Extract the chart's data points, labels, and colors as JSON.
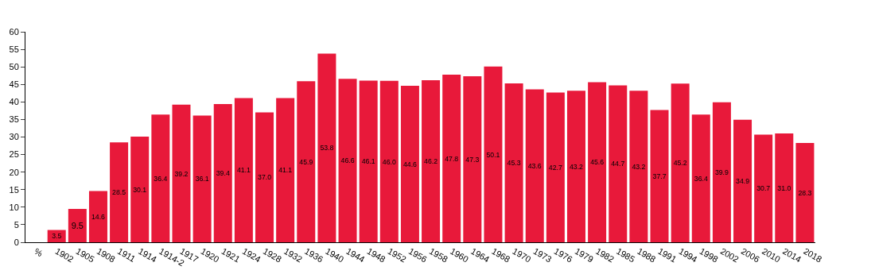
{
  "chart_data": {
    "type": "bar",
    "categories": [
      "%",
      "1902",
      "1905",
      "1908",
      "1911",
      "1914",
      "1914-2",
      "1917",
      "1920",
      "1921",
      "1924",
      "1928",
      "1932",
      "1936",
      "1940",
      "1944",
      "1948",
      "1952",
      "1956",
      "1958",
      "1960",
      "1964",
      "1968",
      "1970",
      "1973",
      "1976",
      "1979",
      "1982",
      "1985",
      "1988",
      "1991",
      "1994",
      "1998",
      "2002",
      "2006",
      "2010",
      "2014",
      "2018"
    ],
    "values": [
      null,
      3.5,
      9.5,
      14.6,
      28.5,
      30.1,
      36.4,
      39.2,
      36.1,
      39.4,
      41.1,
      37.0,
      41.1,
      45.9,
      53.8,
      46.6,
      46.1,
      46.0,
      44.6,
      46.2,
      47.8,
      47.3,
      50.1,
      45.3,
      43.6,
      42.7,
      43.2,
      45.6,
      44.7,
      43.2,
      37.7,
      45.2,
      36.4,
      39.9,
      34.9,
      30.7,
      31.0,
      28.3
    ],
    "value_labels": [
      null,
      "3.5",
      "9.5",
      "14.6",
      "28.5",
      "30.1",
      "36.4",
      "39.2",
      "36.1",
      "39.4",
      "41.1",
      "37.0",
      "41.1",
      "45.9",
      "53.8",
      "46.6",
      "46.1",
      "46.0",
      "44.6",
      "46.2",
      "47.8",
      "47.3",
      "50.1",
      "45.3",
      "43.6",
      "42.7",
      "43.2",
      "45.6",
      "44.7",
      "43.2",
      "37.7",
      "45.2",
      "36.4",
      "39.9",
      "34.9",
      "30.7",
      "31.0",
      "28.3"
    ],
    "color": "#e8193a",
    "ylim": [
      0,
      60
    ],
    "yticks": [
      0,
      5,
      10,
      15,
      20,
      25,
      30,
      35,
      40,
      45,
      50,
      55,
      60
    ],
    "legend": false
  }
}
